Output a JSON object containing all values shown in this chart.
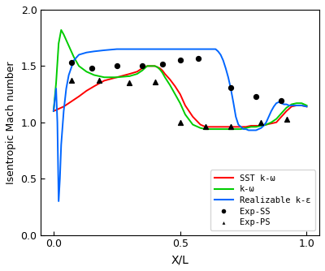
{
  "title": "",
  "xlabel": "X/L",
  "ylabel": "Isentropic Mach number",
  "xlim": [
    -0.05,
    1.05
  ],
  "ylim": [
    0.0,
    2.0
  ],
  "xticks": [
    0.0,
    0.5,
    1.0
  ],
  "yticks": [
    0.0,
    0.5,
    1.0,
    1.5,
    2.0
  ],
  "sst_color": "#ff0000",
  "komega_color": "#00cc00",
  "realizable_color": "#0066ff",
  "exp_ss_color": "#000000",
  "exp_ps_color": "#000000",
  "legend_labels": [
    "SST k-ω",
    "k-ω",
    "Realizable k-ε",
    "Exp-SS",
    "Exp-PS"
  ],
  "sst_x": [
    0.0,
    0.02,
    0.04,
    0.06,
    0.08,
    0.1,
    0.13,
    0.16,
    0.2,
    0.25,
    0.3,
    0.33,
    0.35,
    0.37,
    0.39,
    0.4,
    0.41,
    0.42,
    0.43,
    0.44,
    0.46,
    0.48,
    0.5,
    0.52,
    0.55,
    0.58,
    0.6,
    0.62,
    0.64,
    0.66,
    0.68,
    0.7,
    0.72,
    0.74,
    0.76,
    0.78,
    0.8,
    0.82,
    0.84,
    0.86,
    0.88,
    0.9,
    0.92,
    0.94,
    0.96,
    0.98,
    1.0
  ],
  "sst_y": [
    1.1,
    1.12,
    1.14,
    1.17,
    1.2,
    1.23,
    1.28,
    1.32,
    1.37,
    1.4,
    1.43,
    1.45,
    1.48,
    1.5,
    1.5,
    1.5,
    1.49,
    1.48,
    1.46,
    1.43,
    1.38,
    1.32,
    1.25,
    1.15,
    1.05,
    0.98,
    0.96,
    0.96,
    0.96,
    0.96,
    0.96,
    0.96,
    0.96,
    0.96,
    0.96,
    0.97,
    0.97,
    0.97,
    0.98,
    0.99,
    1.0,
    1.05,
    1.1,
    1.14,
    1.15,
    1.15,
    1.14
  ],
  "komega_x": [
    0.0,
    0.01,
    0.02,
    0.03,
    0.04,
    0.06,
    0.08,
    0.1,
    0.13,
    0.16,
    0.2,
    0.25,
    0.3,
    0.33,
    0.35,
    0.37,
    0.39,
    0.4,
    0.41,
    0.42,
    0.43,
    0.44,
    0.46,
    0.48,
    0.5,
    0.52,
    0.55,
    0.58,
    0.6,
    0.62,
    0.64,
    0.66,
    0.68,
    0.7,
    0.72,
    0.74,
    0.76,
    0.78,
    0.8,
    0.82,
    0.84,
    0.86,
    0.88,
    0.9,
    0.92,
    0.94,
    0.96,
    0.98,
    1.0
  ],
  "komega_y": [
    1.1,
    1.35,
    1.7,
    1.82,
    1.78,
    1.68,
    1.58,
    1.5,
    1.45,
    1.42,
    1.4,
    1.4,
    1.41,
    1.43,
    1.46,
    1.5,
    1.5,
    1.5,
    1.49,
    1.47,
    1.44,
    1.4,
    1.33,
    1.25,
    1.17,
    1.07,
    0.98,
    0.95,
    0.94,
    0.94,
    0.94,
    0.94,
    0.94,
    0.94,
    0.94,
    0.94,
    0.95,
    0.96,
    0.96,
    0.97,
    0.98,
    1.0,
    1.03,
    1.08,
    1.13,
    1.16,
    1.17,
    1.17,
    1.15
  ],
  "realizable_x": [
    0.0,
    0.01,
    0.015,
    0.02,
    0.025,
    0.03,
    0.04,
    0.05,
    0.06,
    0.08,
    0.1,
    0.13,
    0.16,
    0.2,
    0.25,
    0.3,
    0.35,
    0.4,
    0.45,
    0.5,
    0.55,
    0.58,
    0.6,
    0.62,
    0.64,
    0.65,
    0.66,
    0.67,
    0.68,
    0.69,
    0.7,
    0.71,
    0.72,
    0.73,
    0.74,
    0.75,
    0.76,
    0.77,
    0.78,
    0.79,
    0.8,
    0.81,
    0.82,
    0.83,
    0.84,
    0.85,
    0.86,
    0.87,
    0.88,
    0.89,
    0.9,
    0.91,
    0.92,
    0.93,
    0.94,
    0.96,
    0.98,
    1.0
  ],
  "realizable_y": [
    1.1,
    1.3,
    1.0,
    0.3,
    0.5,
    0.8,
    1.1,
    1.3,
    1.42,
    1.55,
    1.6,
    1.62,
    1.63,
    1.64,
    1.65,
    1.65,
    1.65,
    1.65,
    1.65,
    1.65,
    1.65,
    1.65,
    1.65,
    1.65,
    1.65,
    1.63,
    1.6,
    1.55,
    1.48,
    1.4,
    1.3,
    1.18,
    1.05,
    0.98,
    0.96,
    0.94,
    0.94,
    0.93,
    0.93,
    0.93,
    0.93,
    0.94,
    0.95,
    0.97,
    1.0,
    1.05,
    1.1,
    1.14,
    1.17,
    1.18,
    1.17,
    1.16,
    1.16,
    1.15,
    1.15,
    1.15,
    1.15,
    1.14
  ],
  "exp_ss_x": [
    0.07,
    0.15,
    0.25,
    0.35,
    0.43,
    0.5,
    0.57,
    0.7,
    0.8,
    0.9
  ],
  "exp_ss_y": [
    1.53,
    1.48,
    1.5,
    1.5,
    1.52,
    1.55,
    1.57,
    1.31,
    1.23,
    1.19
  ],
  "exp_ps_x": [
    0.07,
    0.18,
    0.3,
    0.4,
    0.5,
    0.6,
    0.7,
    0.82,
    0.92
  ],
  "exp_ps_y": [
    1.37,
    1.37,
    1.35,
    1.36,
    1.0,
    0.96,
    0.96,
    1.0,
    1.03
  ]
}
